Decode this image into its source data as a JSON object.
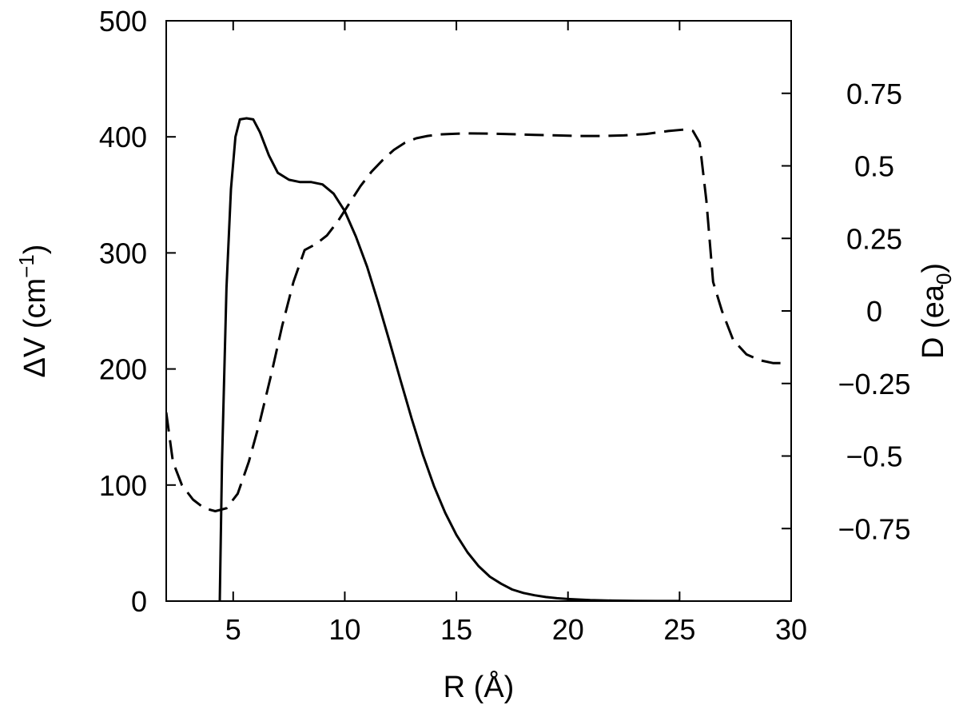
{
  "chart_data": {
    "type": "line",
    "xlabel": "R (Å)",
    "ylabel_left": {
      "main": "ΔV (cm",
      "sup": "−1",
      "tail": ")"
    },
    "ylabel_right": {
      "main": "D (ea",
      "sub": "0",
      "tail": ")"
    },
    "xlim": [
      2,
      30
    ],
    "ylim_left": [
      0,
      500
    ],
    "ylim_right": [
      -1.0,
      1.0
    ],
    "xticks": [
      {
        "value": 5,
        "label": "5"
      },
      {
        "value": 10,
        "label": "10"
      },
      {
        "value": 15,
        "label": "15"
      },
      {
        "value": 20,
        "label": "20"
      },
      {
        "value": 25,
        "label": "25"
      },
      {
        "value": 30,
        "label": "30"
      }
    ],
    "yticks_left": [
      {
        "value": 0,
        "label": "0"
      },
      {
        "value": 100,
        "label": "100"
      },
      {
        "value": 200,
        "label": "200"
      },
      {
        "value": 300,
        "label": "300"
      },
      {
        "value": 400,
        "label": "400"
      },
      {
        "value": 500,
        "label": "500"
      }
    ],
    "yticks_right": [
      {
        "value": -0.75,
        "label": "−0.75"
      },
      {
        "value": -0.5,
        "label": "−0.5"
      },
      {
        "value": -0.25,
        "label": "−0.25"
      },
      {
        "value": 0,
        "label": "0"
      },
      {
        "value": 0.25,
        "label": "0.25"
      },
      {
        "value": 0.5,
        "label": "0.5"
      },
      {
        "value": 0.75,
        "label": "0.75"
      }
    ],
    "grid": false,
    "series": [
      {
        "axis": "left",
        "style": "solid",
        "color": "#000000",
        "x": [
          4.4,
          4.5,
          4.7,
          4.9,
          5.1,
          5.3,
          5.6,
          5.9,
          6.2,
          6.6,
          7.0,
          7.5,
          8.0,
          8.5,
          9.0,
          9.5,
          10.0,
          10.5,
          11.0,
          11.5,
          12.0,
          12.5,
          13.0,
          13.5,
          14.0,
          14.5,
          15.0,
          15.5,
          16.0,
          16.5,
          17.0,
          17.5,
          18.0,
          18.5,
          19.0,
          19.5,
          20.0,
          21.0,
          22.0,
          23.0,
          24.0,
          25.0
        ],
        "y": [
          0,
          120,
          270,
          355,
          400,
          415,
          416,
          415,
          404,
          384,
          369,
          363,
          361,
          361,
          359,
          351,
          336,
          314,
          288,
          257,
          224,
          190,
          157,
          126,
          99,
          76,
          57,
          42,
          30,
          21,
          15,
          10,
          7,
          5,
          3.5,
          2.5,
          1.8,
          0.8,
          0.4,
          0.2,
          0.1,
          0.05
        ]
      },
      {
        "axis": "right",
        "style": "dashed",
        "color": "#000000",
        "x": [
          2.0,
          2.3,
          2.7,
          3.2,
          3.7,
          4.2,
          4.7,
          5.2,
          5.7,
          6.2,
          6.7,
          7.2,
          7.7,
          8.2,
          8.7,
          9.2,
          9.7,
          10.2,
          10.7,
          11.2,
          11.7,
          12.2,
          12.7,
          13.2,
          13.7,
          14.2,
          14.7,
          15.5,
          16.5,
          17.5,
          18.5,
          19.5,
          20.5,
          21.5,
          22.5,
          23.5,
          24.5,
          25.2,
          25.6,
          25.9,
          26.2,
          26.5,
          26.9,
          27.4,
          28.0,
          28.6,
          29.2,
          29.6
        ],
        "y": [
          -0.35,
          -0.52,
          -0.6,
          -0.65,
          -0.68,
          -0.69,
          -0.68,
          -0.63,
          -0.52,
          -0.38,
          -0.22,
          -0.05,
          0.1,
          0.21,
          0.23,
          0.26,
          0.31,
          0.37,
          0.43,
          0.48,
          0.52,
          0.555,
          0.58,
          0.595,
          0.603,
          0.608,
          0.61,
          0.612,
          0.611,
          0.609,
          0.607,
          0.605,
          0.603,
          0.603,
          0.605,
          0.61,
          0.62,
          0.625,
          0.62,
          0.58,
          0.38,
          0.1,
          0.0,
          -0.1,
          -0.15,
          -0.17,
          -0.18,
          -0.18
        ]
      }
    ]
  }
}
